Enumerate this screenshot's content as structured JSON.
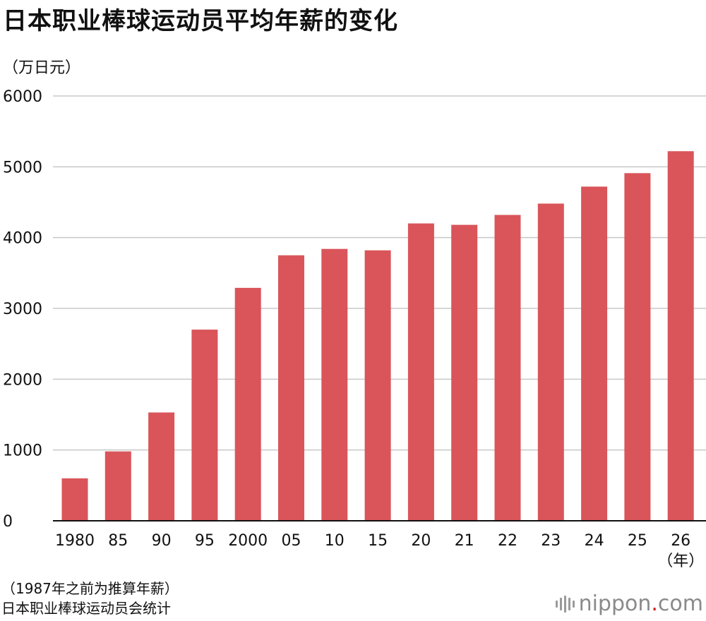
{
  "title": "日本职业棒球运动员平均年薪的变化",
  "unit_label": "（万日元）",
  "notes": {
    "line1": "（1987年之前为推算年薪）",
    "line2": "日本职业棒球运动员会统计"
  },
  "brand": {
    "name": "nippon",
    "dot": ".",
    "suffix": "com",
    "icon": "nippon-logo-bars"
  },
  "colors": {
    "bar": "#d9555a",
    "grid": "#c8c8c8",
    "axis": "#111111"
  },
  "chart_data": {
    "type": "bar",
    "title": "日本职业棒球运动员平均年薪的变化",
    "ylabel": "（万日元）",
    "xlabel": "（年）",
    "categories": [
      "1980",
      "85",
      "90",
      "95",
      "2000",
      "05",
      "10",
      "15",
      "20",
      "21",
      "22",
      "23",
      "24",
      "25",
      "26"
    ],
    "values": [
      600,
      980,
      1530,
      2700,
      3290,
      3750,
      3840,
      3820,
      4200,
      4180,
      4320,
      4480,
      4720,
      4910,
      5220
    ],
    "ylim": [
      0,
      6000
    ],
    "yticks": [
      0,
      1000,
      2000,
      3000,
      4000,
      5000,
      6000
    ],
    "grid": true,
    "legend": "none"
  }
}
